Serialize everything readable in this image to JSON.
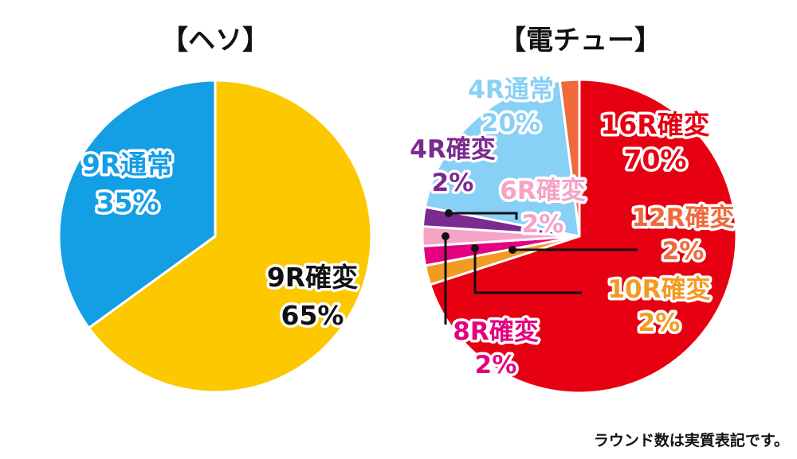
{
  "note": "ラウンド数は実質表記です。",
  "chart_data": [
    {
      "type": "pie",
      "title": "【ヘソ】",
      "slices": [
        {
          "label": "9R確変",
          "value": 65,
          "value_text": "65%",
          "color": "#fcc800",
          "text_color": "#111111"
        },
        {
          "label": "9R通常",
          "value": 35,
          "value_text": "35%",
          "color": "#149ee4",
          "text_color": "#149ee4"
        }
      ]
    },
    {
      "type": "pie",
      "title": "【電チュー】",
      "slices": [
        {
          "label": "16R確変",
          "value": 70,
          "value_text": "70%",
          "color": "#e60012",
          "text_color": "#e60012"
        },
        {
          "label": "10R確変",
          "value": 2,
          "value_text": "2%",
          "color": "#f39a21",
          "text_color": "#f39a21"
        },
        {
          "label": "8R確変",
          "value": 2,
          "value_text": "2%",
          "color": "#e4007f",
          "text_color": "#e4007f"
        },
        {
          "label": "6R確変",
          "value": 2,
          "value_text": "2%",
          "color": "#f5a3c7",
          "text_color": "#f5a3c7"
        },
        {
          "label": "4R確変",
          "value": 2,
          "value_text": "2%",
          "color": "#7b2a8f",
          "text_color": "#7b2a8f"
        },
        {
          "label": "4R通常",
          "value": 20,
          "value_text": "20%",
          "color": "#88d0f5",
          "text_color": "#88d0f5"
        },
        {
          "label": "12R確変",
          "value": 2,
          "value_text": "2%",
          "color": "#ee6a3c",
          "text_color": "#ee6a3c"
        }
      ]
    }
  ]
}
